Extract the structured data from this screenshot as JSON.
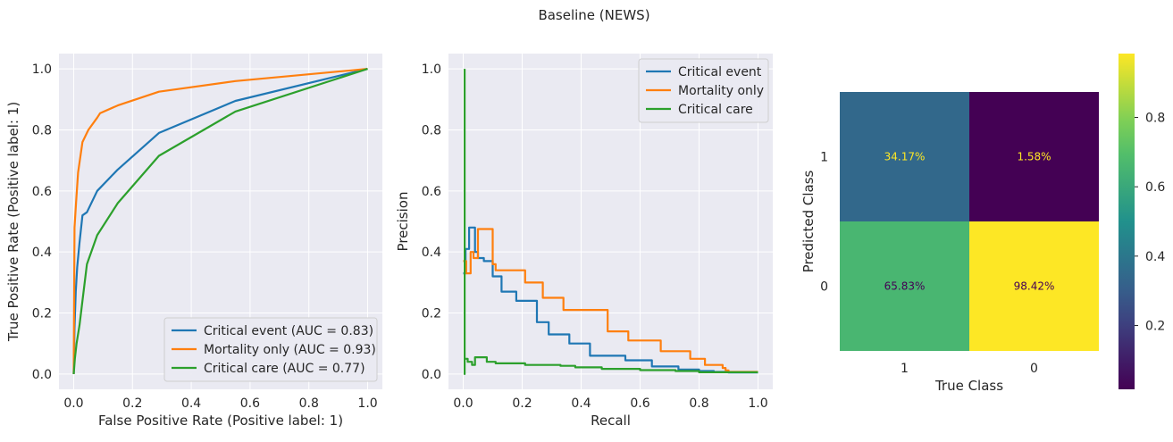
{
  "title": "Baseline (NEWS)",
  "colors": {
    "critical_event": "#1f77b4",
    "mortality_only": "#ff7f0e",
    "critical_care": "#2ca02c",
    "axes_bg": "#eaeaf2",
    "grid": "#ffffff"
  },
  "chart_data": [
    {
      "type": "line",
      "subtype": "roc",
      "xlabel": "False Positive Rate (Positive label: 1)",
      "ylabel": "True Positive Rate (Positive label: 1)",
      "xlim": [
        -0.05,
        1.05
      ],
      "ylim": [
        -0.05,
        1.05
      ],
      "xticks": [
        "0.0",
        "0.2",
        "0.4",
        "0.6",
        "0.8",
        "1.0"
      ],
      "yticks": [
        "0.0",
        "0.2",
        "0.4",
        "0.6",
        "0.8",
        "1.0"
      ],
      "grid": true,
      "legend_position": "lower-right",
      "series": [
        {
          "name": "Critical event (AUC = 0.83)",
          "color": "#1f77b4",
          "x": [
            0,
            0.003,
            0.007,
            0.012,
            0.02,
            0.03,
            0.045,
            0.08,
            0.15,
            0.29,
            0.55,
            1.0
          ],
          "y": [
            0,
            0.15,
            0.27,
            0.35,
            0.43,
            0.52,
            0.53,
            0.6,
            0.67,
            0.79,
            0.895,
            1.0
          ]
        },
        {
          "name": "Mortality only (AUC = 0.93)",
          "color": "#ff7f0e",
          "x": [
            0,
            0.003,
            0.008,
            0.015,
            0.03,
            0.05,
            0.08,
            0.09,
            0.15,
            0.29,
            0.55,
            1.0
          ],
          "y": [
            0,
            0.48,
            0.56,
            0.66,
            0.76,
            0.8,
            0.84,
            0.855,
            0.88,
            0.925,
            0.96,
            1.0
          ]
        },
        {
          "name": "Critical care (AUC = 0.77)",
          "color": "#2ca02c",
          "x": [
            0,
            0.004,
            0.01,
            0.02,
            0.03,
            0.045,
            0.08,
            0.15,
            0.29,
            0.55,
            1.0
          ],
          "y": [
            0,
            0.05,
            0.1,
            0.16,
            0.24,
            0.36,
            0.455,
            0.56,
            0.715,
            0.86,
            1.0
          ]
        }
      ]
    },
    {
      "type": "line",
      "subtype": "precision-recall",
      "xlabel": "Recall",
      "ylabel": "Precision",
      "xlim": [
        -0.05,
        1.05
      ],
      "ylim": [
        -0.05,
        1.05
      ],
      "xticks": [
        "0.0",
        "0.2",
        "0.4",
        "0.6",
        "0.8",
        "1.0"
      ],
      "yticks": [
        "0.0",
        "0.2",
        "0.4",
        "0.6",
        "0.8",
        "1.0"
      ],
      "grid": true,
      "legend_position": "top-right",
      "series": [
        {
          "name": "Critical event",
          "color": "#1f77b4",
          "x": [
            0,
            0.008,
            0.008,
            0.02,
            0.02,
            0.04,
            0.04,
            0.05,
            0.05,
            0.07,
            0.07,
            0.1,
            0.1,
            0.13,
            0.13,
            0.18,
            0.18,
            0.25,
            0.25,
            0.29,
            0.29,
            0.36,
            0.36,
            0.43,
            0.43,
            0.55,
            0.55,
            0.64,
            0.64,
            0.73,
            0.73,
            0.8,
            0.8,
            0.85,
            0.85,
            0.9,
            0.9,
            1.0
          ],
          "y": [
            0.33,
            0.33,
            0.41,
            0.41,
            0.48,
            0.48,
            0.4,
            0.4,
            0.38,
            0.38,
            0.37,
            0.37,
            0.32,
            0.32,
            0.27,
            0.27,
            0.24,
            0.24,
            0.17,
            0.17,
            0.13,
            0.13,
            0.1,
            0.1,
            0.06,
            0.06,
            0.045,
            0.045,
            0.025,
            0.025,
            0.015,
            0.015,
            0.01,
            0.01,
            0.007,
            0.007,
            0.005,
            0.005
          ]
        },
        {
          "name": "Mortality only",
          "color": "#ff7f0e",
          "x": [
            0,
            0.01,
            0.01,
            0.025,
            0.025,
            0.035,
            0.035,
            0.05,
            0.05,
            0.1,
            0.1,
            0.11,
            0.11,
            0.15,
            0.15,
            0.21,
            0.21,
            0.27,
            0.27,
            0.34,
            0.34,
            0.49,
            0.49,
            0.56,
            0.56,
            0.67,
            0.67,
            0.77,
            0.77,
            0.82,
            0.82,
            0.88,
            0.88,
            0.89,
            0.89,
            0.9,
            0.9,
            1.0
          ],
          "y": [
            0.37,
            0.37,
            0.33,
            0.33,
            0.4,
            0.4,
            0.38,
            0.38,
            0.475,
            0.475,
            0.36,
            0.36,
            0.34,
            0.34,
            0.34,
            0.34,
            0.3,
            0.3,
            0.25,
            0.25,
            0.21,
            0.21,
            0.14,
            0.14,
            0.11,
            0.11,
            0.075,
            0.075,
            0.05,
            0.05,
            0.03,
            0.03,
            0.02,
            0.02,
            0.012,
            0.012,
            0.007,
            0.007
          ]
        },
        {
          "name": "Critical care",
          "color": "#2ca02c",
          "x": [
            0.005,
            0.005,
            0.005,
            0.015,
            0.015,
            0.03,
            0.03,
            0.04,
            0.04,
            0.08,
            0.08,
            0.11,
            0.11,
            0.21,
            0.21,
            0.33,
            0.33,
            0.38,
            0.38,
            0.47,
            0.47,
            0.6,
            0.6,
            0.72,
            0.72,
            0.8,
            0.8,
            1.0
          ],
          "y": [
            1.0,
            0.0,
            0.05,
            0.05,
            0.04,
            0.04,
            0.03,
            0.03,
            0.055,
            0.055,
            0.04,
            0.04,
            0.035,
            0.035,
            0.03,
            0.03,
            0.027,
            0.027,
            0.022,
            0.022,
            0.017,
            0.017,
            0.013,
            0.013,
            0.01,
            0.01,
            0.006,
            0.006
          ]
        }
      ]
    },
    {
      "type": "heatmap",
      "subtype": "confusion-matrix",
      "xlabel": "True Class",
      "ylabel": "Predicted Class",
      "x_categories": [
        "1",
        "0"
      ],
      "y_categories": [
        "1",
        "0"
      ],
      "values": [
        [
          0.3417,
          0.0158
        ],
        [
          0.6583,
          0.9842
        ]
      ],
      "labels": [
        [
          "34.17%",
          "1.58%"
        ],
        [
          "65.83%",
          "98.42%"
        ]
      ],
      "colormap": "viridis",
      "colorbar_ticks": [
        "0.2",
        "0.4",
        "0.6",
        "0.8"
      ],
      "colorbar_tick_values": [
        0.2,
        0.4,
        0.6,
        0.8
      ],
      "colorbar_range": [
        0.0158,
        0.9842
      ]
    }
  ]
}
